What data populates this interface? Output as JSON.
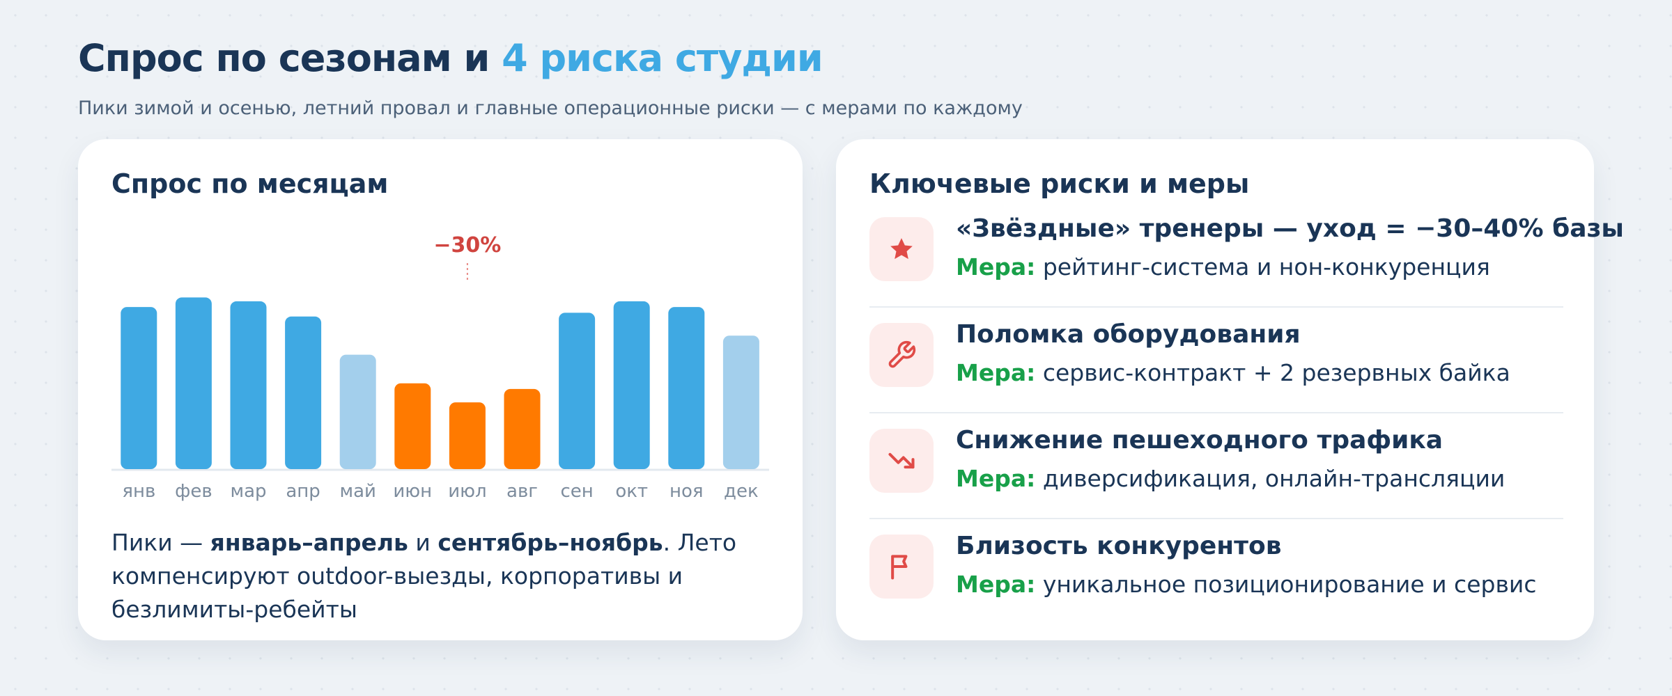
{
  "header": {
    "title_main": "Спрос по сезонам и ",
    "title_accent": "4 риска студии",
    "subtitle": "Пики зимой и осенью, летний провал и главные операционные риски — с мерами по каждому"
  },
  "colors": {
    "navy": "#1a3556",
    "accent": "#3fa9e3",
    "peak": "#3fa9e3",
    "shoulder": "#a3cfec",
    "dip": "#ff7a00",
    "risk_red": "#e04b47",
    "measure_green": "#18a049"
  },
  "demand": {
    "card_title": "Спрос по месяцам",
    "annotation": "−30%",
    "note_prefix": "Пики — ",
    "note_bold1": "январь–апрель",
    "note_mid": " и ",
    "note_bold2": "сентябрь–ноябрь",
    "note_suffix": ". Лето компенсируют outdoor-выезды, корпоративы и безлимиты-ребейты"
  },
  "chart_data": {
    "type": "bar",
    "title": "Спрос по месяцам",
    "categories": [
      "янв",
      "фев",
      "мар",
      "апр",
      "май",
      "июн",
      "июл",
      "авг",
      "сен",
      "окт",
      "ноя",
      "дек"
    ],
    "values": [
      85,
      90,
      88,
      80,
      60,
      45,
      35,
      42,
      82,
      88,
      85,
      70
    ],
    "status": [
      "peak",
      "peak",
      "peak",
      "peak",
      "shoulder",
      "dip",
      "dip",
      "dip",
      "peak",
      "peak",
      "peak",
      "shoulder"
    ],
    "ylim": [
      0,
      100
    ],
    "grid": false,
    "annotation": {
      "text": "−30%",
      "category": "июл"
    }
  },
  "risks": {
    "card_title": "Ключевые риски и меры",
    "measure_label": "Мера:",
    "items": [
      {
        "icon": "star-icon",
        "title": "«Звёздные» тренеры — уход = −30–40% базы",
        "measure": "рейтинг-система и нон-конкуренция"
      },
      {
        "icon": "wrench-icon",
        "title": "Поломка оборудования",
        "measure": "сервис-контракт + 2 резервных байка"
      },
      {
        "icon": "trend-down-icon",
        "title": "Снижение пешеходного трафика",
        "measure": "диверсификация, онлайн-трансляции"
      },
      {
        "icon": "flag-icon",
        "title": "Близость конкурентов",
        "measure": "уникальное позиционирование и сервис"
      }
    ]
  }
}
